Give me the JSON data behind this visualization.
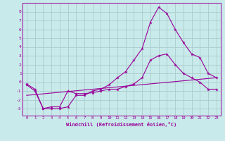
{
  "background_color": "#c8eaea",
  "grid_color": "#aacccc",
  "line_color": "#990099",
  "xlim": [
    -0.5,
    23.5
  ],
  "ylim": [
    -3.8,
    9.0
  ],
  "xlabel": "Windchill (Refroidissement éolien,°C)",
  "xticks": [
    0,
    1,
    2,
    3,
    4,
    5,
    6,
    7,
    8,
    9,
    10,
    11,
    12,
    13,
    14,
    15,
    16,
    17,
    18,
    19,
    20,
    21,
    22,
    23
  ],
  "yticks": [
    -3,
    -2,
    -1,
    0,
    1,
    2,
    3,
    4,
    5,
    6,
    7,
    8
  ],
  "line1_x": [
    0,
    1,
    2,
    3,
    4,
    5,
    6,
    7,
    8,
    9,
    10,
    11,
    12,
    13,
    14,
    15,
    16,
    17,
    18,
    19,
    20,
    21,
    22,
    23
  ],
  "line1_y": [
    -0.2,
    -0.8,
    -3.0,
    -3.0,
    -3.0,
    -2.8,
    -1.5,
    -1.5,
    -1.0,
    -0.8,
    -0.3,
    0.5,
    1.2,
    2.5,
    3.8,
    6.8,
    8.5,
    7.8,
    6.0,
    4.5,
    3.2,
    2.8,
    1.0,
    0.5
  ],
  "line2_x": [
    0,
    1,
    2,
    3,
    4,
    5,
    6,
    7,
    8,
    9,
    10,
    11,
    12,
    13,
    14,
    15,
    16,
    17,
    18,
    19,
    20,
    21,
    22,
    23
  ],
  "line2_y": [
    -0.3,
    -1.0,
    -3.0,
    -2.8,
    -2.8,
    -1.0,
    -1.3,
    -1.3,
    -1.2,
    -1.0,
    -0.8,
    -0.8,
    -0.5,
    -0.2,
    0.5,
    2.5,
    3.0,
    3.2,
    2.0,
    1.0,
    0.5,
    0.0,
    -0.8,
    -0.8
  ],
  "line3_x": [
    0,
    23
  ],
  "line3_y": [
    -1.5,
    0.5
  ]
}
